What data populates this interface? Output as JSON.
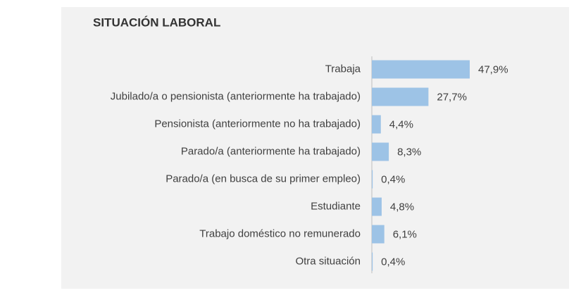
{
  "chart_data": {
    "type": "bar",
    "orientation": "horizontal",
    "title": "SITUACIÓN LABORAL",
    "categories": [
      "Trabaja",
      "Jubilado/a o pensionista (anteriormente ha trabajado)",
      "Pensionista (anteriormente no ha trabajado)",
      "Parado/a (anteriormente ha trabajado)",
      "Parado/a (en busca de su primer empleo)",
      "Estudiante",
      "Trabajo doméstico no remunerado",
      "Otra situación"
    ],
    "values": [
      47.9,
      27.7,
      4.4,
      8.3,
      0.4,
      4.8,
      6.1,
      0.4
    ],
    "value_labels": [
      "47,9%",
      "27,7%",
      "4,4%",
      "8,3%",
      "0,4%",
      "4,8%",
      "6,1%",
      "0,4%"
    ],
    "color": "#9dc3e6"
  }
}
